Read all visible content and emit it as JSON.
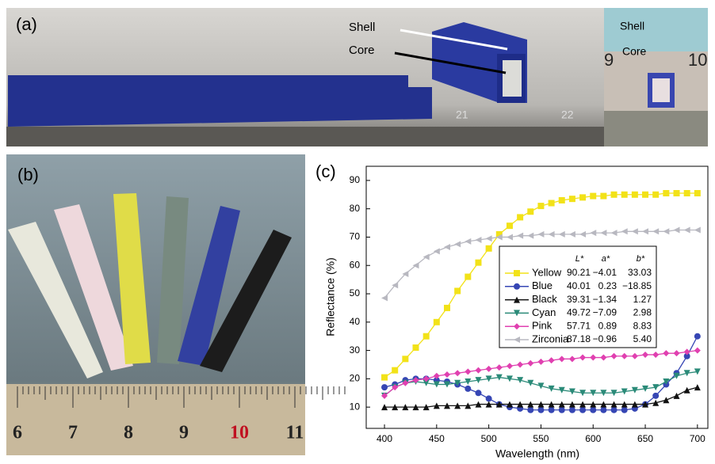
{
  "panels": {
    "a": {
      "label": "(a)",
      "callouts": [
        "Shell",
        "Core"
      ],
      "ruler_labels": [
        "21",
        "22"
      ],
      "inset_callouts": [
        "Shell",
        "Core"
      ],
      "inset_ruler_labels": [
        "9",
        "10"
      ]
    },
    "b": {
      "label": "(b)",
      "ruler_labels": [
        "6",
        "7",
        "8",
        "9",
        "10",
        "11"
      ]
    }
  },
  "chart_data": {
    "type": "line",
    "panel_label": "(c)",
    "x_label": "Wavelength (nm)",
    "y_label": "Reflectance (%)",
    "x": [
      400,
      410,
      420,
      430,
      440,
      450,
      460,
      470,
      480,
      490,
      500,
      510,
      520,
      530,
      540,
      550,
      560,
      570,
      580,
      590,
      600,
      610,
      620,
      630,
      640,
      650,
      660,
      670,
      680,
      690,
      700
    ],
    "xlim": [
      382.5,
      710
    ],
    "xticks": [
      400,
      450,
      500,
      550,
      600,
      650,
      700
    ],
    "ylim": [
      2.5,
      95
    ],
    "yticks": [
      10,
      20,
      30,
      40,
      50,
      60,
      70,
      80,
      90
    ],
    "series": [
      {
        "name": "Yellow",
        "color": "#f2e218",
        "marker": "square",
        "values": [
          20.5,
          23,
          27,
          31,
          35,
          40,
          45,
          51,
          56,
          61,
          66,
          71,
          74,
          77,
          79,
          81,
          82,
          83,
          83.5,
          84,
          84.5,
          84.5,
          85,
          85,
          85,
          85,
          85,
          85.5,
          85.5,
          85.5,
          85.5
        ]
      },
      {
        "name": "Blue",
        "color": "#3646b4",
        "marker": "circle",
        "values": [
          17,
          18,
          19.5,
          20,
          20,
          19.5,
          19,
          18,
          16.5,
          15,
          13,
          11,
          10,
          9.5,
          9,
          9,
          9,
          9,
          9,
          9,
          9,
          9,
          9,
          9,
          9.5,
          11,
          14,
          18,
          22,
          28,
          35
        ]
      },
      {
        "name": "Black",
        "color": "#111111",
        "marker": "triangle-up",
        "values": [
          10,
          10,
          10,
          10,
          10,
          10.5,
          10.5,
          10.5,
          10.5,
          11,
          11,
          11,
          11,
          11,
          11,
          11,
          11,
          11,
          11,
          11,
          11,
          11,
          11,
          11,
          11,
          11,
          11.5,
          12.5,
          14,
          16,
          17
        ]
      },
      {
        "name": "Cyan",
        "color": "#2a8a78",
        "marker": "triangle-down",
        "values": [
          14,
          17,
          18.5,
          19,
          18.5,
          18,
          18,
          18.5,
          19,
          19.5,
          20,
          20.5,
          20,
          19.5,
          18.5,
          17.5,
          16.5,
          16,
          15.5,
          15,
          15,
          15,
          15,
          15.5,
          16,
          16.5,
          17,
          19,
          21,
          22,
          22.5
        ]
      },
      {
        "name": "Pink",
        "color": "#e040b0",
        "marker": "diamond",
        "values": [
          14,
          17,
          18.5,
          19.5,
          20,
          21,
          21.5,
          22,
          22.5,
          23,
          23.5,
          24,
          24.5,
          25,
          25.5,
          26,
          26.5,
          27,
          27,
          27.5,
          27.5,
          27.5,
          28,
          28,
          28,
          28.5,
          28.5,
          29,
          29,
          29.5,
          30
        ]
      },
      {
        "name": "Zirconia",
        "color": "#b8b8c0",
        "marker": "triangle-left",
        "values": [
          48.5,
          53,
          57,
          60,
          63,
          65,
          66.5,
          67.5,
          68.5,
          69,
          69.5,
          70,
          70,
          70.5,
          70.5,
          71,
          71,
          71,
          71,
          71,
          71.5,
          71.5,
          71.5,
          72,
          72,
          72,
          72,
          72,
          72.5,
          72.5,
          72.5
        ]
      }
    ],
    "legend_table": {
      "columns": [
        "L*",
        "a*",
        "b*"
      ],
      "rows": [
        [
          "90.21",
          "−4.01",
          "33.03"
        ],
        [
          "40.01",
          "0.23",
          "−18.85"
        ],
        [
          "39.31",
          "−1.34",
          "1.27"
        ],
        [
          "49.72",
          "−7.09",
          "2.98"
        ],
        [
          "57.71",
          "0.89",
          "8.83"
        ],
        [
          "87.18",
          "−0.96",
          "5.40"
        ]
      ]
    }
  }
}
